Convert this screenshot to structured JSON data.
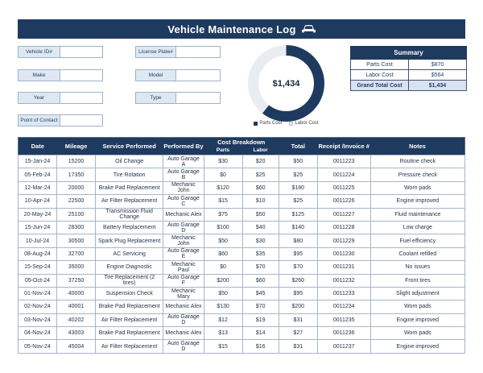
{
  "header": {
    "title": "Vehicle Maintenance Log",
    "icon": "car-icon"
  },
  "form": {
    "left": [
      {
        "label": "Vehicle ID#",
        "value": ""
      },
      {
        "label": "Make",
        "value": ""
      },
      {
        "label": "Year",
        "value": ""
      },
      {
        "label": "Point of Contact",
        "value": ""
      }
    ],
    "right": [
      {
        "label": "License Plate#",
        "value": ""
      },
      {
        "label": "Model",
        "value": ""
      },
      {
        "label": "Type",
        "value": ""
      }
    ]
  },
  "chart_data": {
    "type": "pie",
    "subtype": "donut",
    "center_label": "$1,434",
    "slices": [
      {
        "label": "Parts Cost",
        "value": 870,
        "color": "#1f3a5f"
      },
      {
        "label": "Labor Cost",
        "value": 564,
        "color": "#e9edf2"
      }
    ],
    "legend_position": "bottom"
  },
  "summary": {
    "title": "Summary",
    "rows": [
      {
        "label": "Parts Cost",
        "value": "$870",
        "highlight": false
      },
      {
        "label": "Labor Cost",
        "value": "$564",
        "highlight": false
      },
      {
        "label": "Grand Total Cost",
        "value": "$1,434",
        "highlight": true
      }
    ]
  },
  "table": {
    "group_label": "Cost Breakdown",
    "columns": [
      {
        "label": "Date",
        "width": "8.6%",
        "grouped": false
      },
      {
        "label": "Mileage",
        "width": "8.6%",
        "grouped": false
      },
      {
        "label": "Service Performed",
        "width": "15.1%",
        "grouped": false
      },
      {
        "label": "Performed By",
        "width": "9%",
        "grouped": false
      },
      {
        "label": "Parts",
        "width": "8.6%",
        "grouped": true
      },
      {
        "label": "Labor",
        "width": "8.1%",
        "grouped": true
      },
      {
        "label": "Total",
        "width": "8.6%",
        "grouped": false
      },
      {
        "label": "Receipt /Invoice #",
        "width": "11.8%",
        "grouped": false
      },
      {
        "label": "Notes",
        "width": "21%",
        "grouped": false
      }
    ],
    "rows": [
      [
        "15-Jan-24",
        "15200",
        "Oil Change",
        "Auto Garage A",
        "$30",
        "$20",
        "$50",
        "0011223",
        "Routine check"
      ],
      [
        "05-Feb-24",
        "17350",
        "Tire Rotation",
        "Auto Garage B",
        "$0",
        "$25",
        "$25",
        "0011224",
        "Pressure check"
      ],
      [
        "12-Mar-24",
        "20000",
        "Brake Pad Replacement",
        "Mechanic John",
        "$120",
        "$60",
        "$180",
        "0011225",
        "Worn pads"
      ],
      [
        "10-Apr-24",
        "22500",
        "Air Filter Replacement",
        "Auto Garage C",
        "$15",
        "$10",
        "$25",
        "0011226",
        "Engine improved"
      ],
      [
        "20-May-24",
        "25100",
        "Transmission Fluid Change",
        "Mechanic Alex",
        "$75",
        "$50",
        "$125",
        "0011227",
        "Fluid maintenance"
      ],
      [
        "15-Jun-24",
        "28300",
        "Battery Replacement",
        "Auto Garage D",
        "$100",
        "$40",
        "$140",
        "0011228",
        "Low charge"
      ],
      [
        "10-Jul-24",
        "30500",
        "Spark Plug Replacement",
        "Mechanic John",
        "$50",
        "$30",
        "$80",
        "0011229",
        "Fuel efficiency"
      ],
      [
        "08-Aug-24",
        "32700",
        "AC Servicing",
        "Auto Garage E",
        "$60",
        "$35",
        "$95",
        "0011230",
        "Coolant refilled"
      ],
      [
        "15-Sep-24",
        "35000",
        "Engine Diagnostic",
        "Mechanic Paul",
        "$0",
        "$70",
        "$70",
        "0011231",
        "No issues"
      ],
      [
        "05-Oct-24",
        "37250",
        "Tire Replacement (2 tires)",
        "Auto Garage F",
        "$200",
        "$60",
        "$260",
        "0011232",
        "Front tires"
      ],
      [
        "01-Nov-24",
        "40000",
        "Suspension Check",
        "Mechanic Mary",
        "$50",
        "$45",
        "$95",
        "0011233",
        "Slight adjustment"
      ],
      [
        "02-Nov-24",
        "40001",
        "Brake Pad Replacement",
        "Mechanic Alex",
        "$130",
        "$70",
        "$200",
        "0011234",
        "Worn pads"
      ],
      [
        "03-Nov-24",
        "40202",
        "Air Filter Replacement",
        "Auto Garage D",
        "$12",
        "$19",
        "$31",
        "0011235",
        "Engine improved"
      ],
      [
        "04-Nov-24",
        "43003",
        "Brake Pad Replacement",
        "Mechanic Alex",
        "$13",
        "$14",
        "$27",
        "0011236",
        "Worn pads"
      ],
      [
        "05-Nov-24",
        "45004",
        "Air Filter Replacement",
        "Auto Garage D",
        "$15",
        "$16",
        "$31",
        "0011237",
        "Engine improved"
      ]
    ]
  },
  "colors": {
    "navy": "#1f3a5f",
    "label_bg": "#dee8f2",
    "highlight_row": "#d9e2f2",
    "ring_light": "#e9edf2"
  }
}
